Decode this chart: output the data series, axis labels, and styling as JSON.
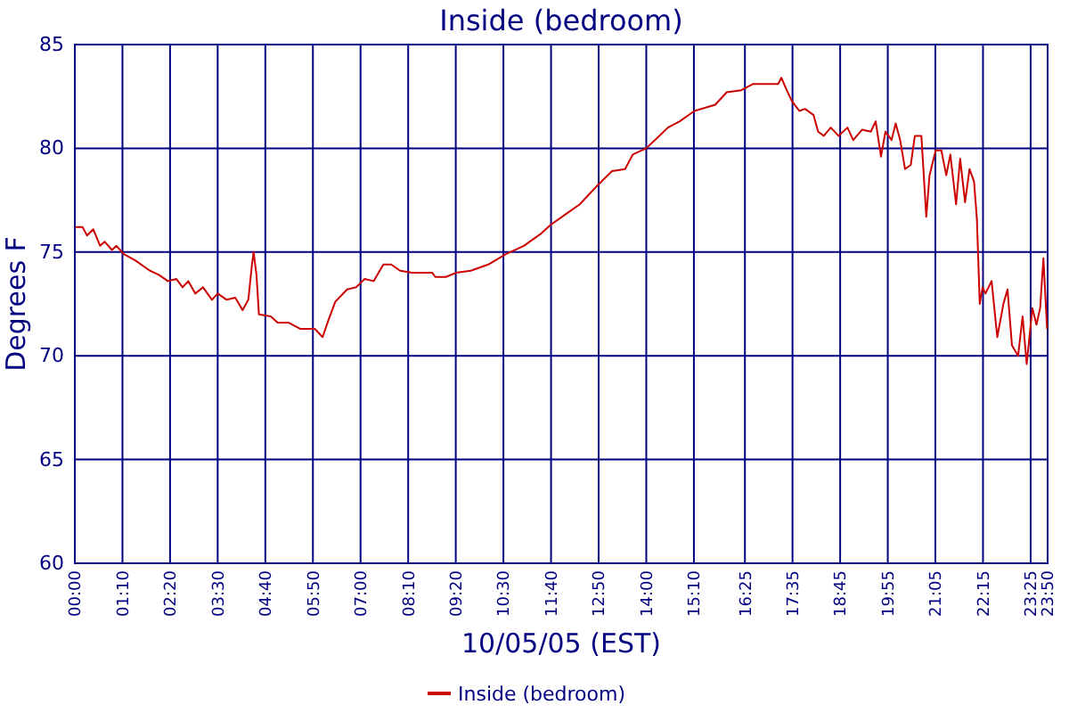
{
  "chart_data": {
    "type": "line",
    "title": "Inside (bedroom)",
    "xlabel": "10/05/05 (EST)",
    "ylabel": "Degrees F",
    "x": [
      0.01,
      0.19,
      0.3,
      0.45,
      0.62,
      0.73,
      0.91,
      1.02,
      1.2,
      1.48,
      1.84,
      2.06,
      2.28,
      2.49,
      2.64,
      2.78,
      2.95,
      3.14,
      3.36,
      3.5,
      3.72,
      3.93,
      4.11,
      4.25,
      4.34,
      4.38,
      4.45,
      4.51,
      4.8,
      4.97,
      5.23,
      5.52,
      5.88,
      6.07,
      6.21,
      6.38,
      6.67,
      6.89,
      7.1,
      7.32,
      7.56,
      7.75,
      7.97,
      8.26,
      8.76,
      8.83,
      9.09,
      9.34,
      9.7,
      10.13,
      10.56,
      11.0,
      11.43,
      11.65,
      12.01,
      12.37,
      12.8,
      13.16,
      13.48,
      13.67,
      14.0,
      14.32,
      14.53,
      14.82,
      15.18,
      15.69,
      15.97,
      16.33,
      16.62,
      17.23,
      17.31,
      17.42,
      17.56,
      17.75,
      17.89,
      18.1,
      18.21,
      18.35,
      18.52,
      18.71,
      18.93,
      19.07,
      19.29,
      19.5,
      19.62,
      19.75,
      19.86,
      20.01,
      20.11,
      20.22,
      20.34,
      20.48,
      20.58,
      20.74,
      20.86,
      20.94,
      21.09,
      21.23,
      21.35,
      21.45,
      21.59,
      21.69,
      21.81,
      21.92,
      22.03,
      22.1,
      22.17,
      22.24,
      22.31,
      22.46,
      22.6,
      22.75,
      22.85,
      22.96,
      23.11,
      23.22,
      23.32,
      23.46,
      23.56,
      23.65,
      23.73,
      23.82
    ],
    "series": [
      {
        "name": "Inside (bedroom)",
        "color": "#cc0000",
        "values": [
          76.2,
          76.2,
          75.8,
          76.1,
          75.3,
          75.5,
          75.1,
          75.3,
          74.9,
          74.6,
          74.1,
          73.9,
          73.6,
          73.7,
          73.3,
          73.6,
          73.0,
          73.3,
          72.7,
          73.0,
          72.7,
          72.8,
          72.2,
          72.7,
          74.4,
          75.0,
          73.9,
          72.0,
          71.9,
          71.6,
          71.6,
          71.3,
          71.3,
          70.9,
          71.7,
          72.6,
          73.2,
          73.3,
          73.7,
          73.6,
          74.4,
          74.4,
          74.1,
          74.0,
          74.0,
          73.8,
          73.8,
          74.0,
          74.1,
          74.4,
          74.9,
          75.3,
          75.9,
          76.3,
          76.8,
          77.3,
          78.2,
          78.9,
          79.0,
          79.7,
          80.0,
          80.6,
          81.0,
          81.3,
          81.8,
          82.1,
          82.7,
          82.8,
          83.1,
          83.1,
          83.4,
          82.9,
          82.3,
          81.8,
          81.9,
          81.6,
          80.8,
          80.6,
          81.0,
          80.6,
          81.0,
          80.4,
          80.9,
          80.8,
          81.3,
          79.6,
          80.8,
          80.4,
          81.2,
          80.4,
          79.0,
          79.2,
          80.6,
          80.6,
          76.7,
          78.7,
          79.9,
          79.9,
          78.7,
          79.7,
          77.3,
          79.5,
          77.4,
          79.0,
          78.4,
          76.6,
          72.5,
          73.3,
          73.0,
          73.6,
          70.9,
          72.5,
          73.2,
          70.5,
          70.0,
          71.9,
          69.6,
          72.3,
          71.5,
          72.3,
          74.7,
          71.3
        ]
      }
    ],
    "xlim": [
      0,
      23.833
    ],
    "xticks": [
      {
        "value": 0,
        "label": "00:00"
      },
      {
        "value": 1.167,
        "label": "01:10"
      },
      {
        "value": 2.333,
        "label": "02:20"
      },
      {
        "value": 3.5,
        "label": "03:30"
      },
      {
        "value": 4.667,
        "label": "04:40"
      },
      {
        "value": 5.833,
        "label": "05:50"
      },
      {
        "value": 7,
        "label": "07:00"
      },
      {
        "value": 8.167,
        "label": "08:10"
      },
      {
        "value": 9.333,
        "label": "09:20"
      },
      {
        "value": 10.5,
        "label": "10:30"
      },
      {
        "value": 11.667,
        "label": "11:40"
      },
      {
        "value": 12.833,
        "label": "12:50"
      },
      {
        "value": 14,
        "label": "14:00"
      },
      {
        "value": 15.167,
        "label": "15:10"
      },
      {
        "value": 16.417,
        "label": "16:25"
      },
      {
        "value": 17.583,
        "label": "17:35"
      },
      {
        "value": 18.75,
        "label": "18:45"
      },
      {
        "value": 19.917,
        "label": "19:55"
      },
      {
        "value": 21.083,
        "label": "21:05"
      },
      {
        "value": 22.25,
        "label": "22:15"
      },
      {
        "value": 23.417,
        "label": "23:25"
      },
      {
        "value": 23.833,
        "label": "23:50"
      }
    ],
    "ylim": [
      60,
      85
    ],
    "yticks": [
      60,
      65,
      70,
      75,
      80,
      85
    ],
    "grid": true,
    "legend": "bottom",
    "marker": "none",
    "line_style": "solid"
  }
}
